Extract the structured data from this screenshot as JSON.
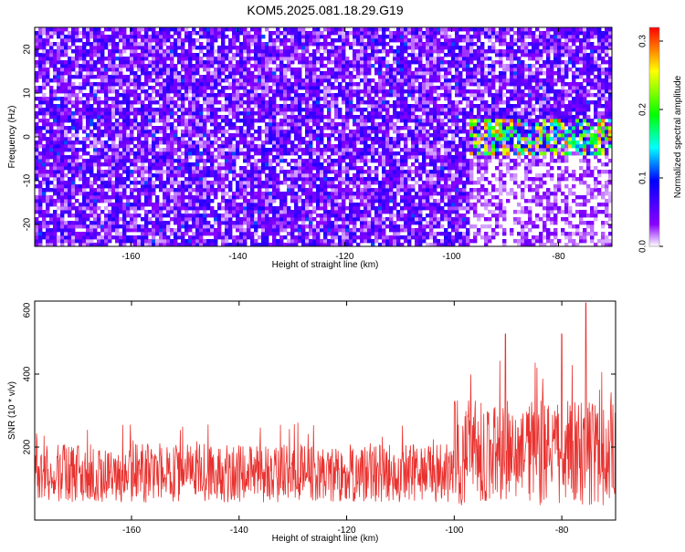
{
  "title": "KOM5.2025.081.18.29.G19",
  "chart_data": [
    {
      "type": "heatmap",
      "xlabel": "Height of straight line (km)",
      "ylabel": "Frequency (Hz)",
      "xlim": [
        -178,
        -70
      ],
      "ylim": [
        -25,
        25
      ],
      "xticks": [
        -160,
        -140,
        -120,
        -100,
        -80
      ],
      "yticks": [
        -20,
        -10,
        0,
        10,
        20
      ],
      "grid": false,
      "colorbar": {
        "label": "Normalized spectral amplitude",
        "range": [
          0.0,
          0.32
        ],
        "ticks": [
          0.0,
          0.1,
          0.2,
          0.3
        ],
        "tick_labels": [
          "0.0",
          "0.1",
          "0.2",
          "0.3"
        ],
        "colormap": [
          "#ffffff",
          "#8a00ff",
          "#0000ff",
          "#00ffff",
          "#00ff00",
          "#ffff00",
          "#ff0000"
        ]
      },
      "features": [
        {
          "description": "broadband noise",
          "x_range": [
            -178,
            -97
          ],
          "freq_range": [
            -25,
            25
          ],
          "typical_amplitude": 0.06
        },
        {
          "description": "signal band",
          "x_range": [
            -97,
            -70
          ],
          "freq_center": 0,
          "freq_halfwidth": 4,
          "peak_amplitude": 0.3
        }
      ]
    },
    {
      "type": "line",
      "xlabel": "Height of straight line (km)",
      "ylabel": "SNR (10 * v/v)",
      "xlim": [
        -178,
        -70
      ],
      "ylim": [
        0,
        600
      ],
      "xticks": [
        -160,
        -140,
        -120,
        -100,
        -80
      ],
      "yticks": [
        200,
        400,
        600
      ],
      "grid": false,
      "series": [
        {
          "color": "#e8322f",
          "x_start": -178,
          "x_end": -70,
          "segments": [
            {
              "x_from": -178,
              "x_to": -100,
              "baseline": 120,
              "noise": 100,
              "typical_max": 330
            },
            {
              "x_from": -100,
              "x_to": -70,
              "baseline": 170,
              "noise": 180,
              "typical_max": 480
            }
          ],
          "peaks": [
            {
              "x": -90.5,
              "y": 510
            },
            {
              "x": -80,
              "y": 510
            },
            {
              "x": -75.5,
              "y": 595
            }
          ]
        }
      ]
    }
  ]
}
